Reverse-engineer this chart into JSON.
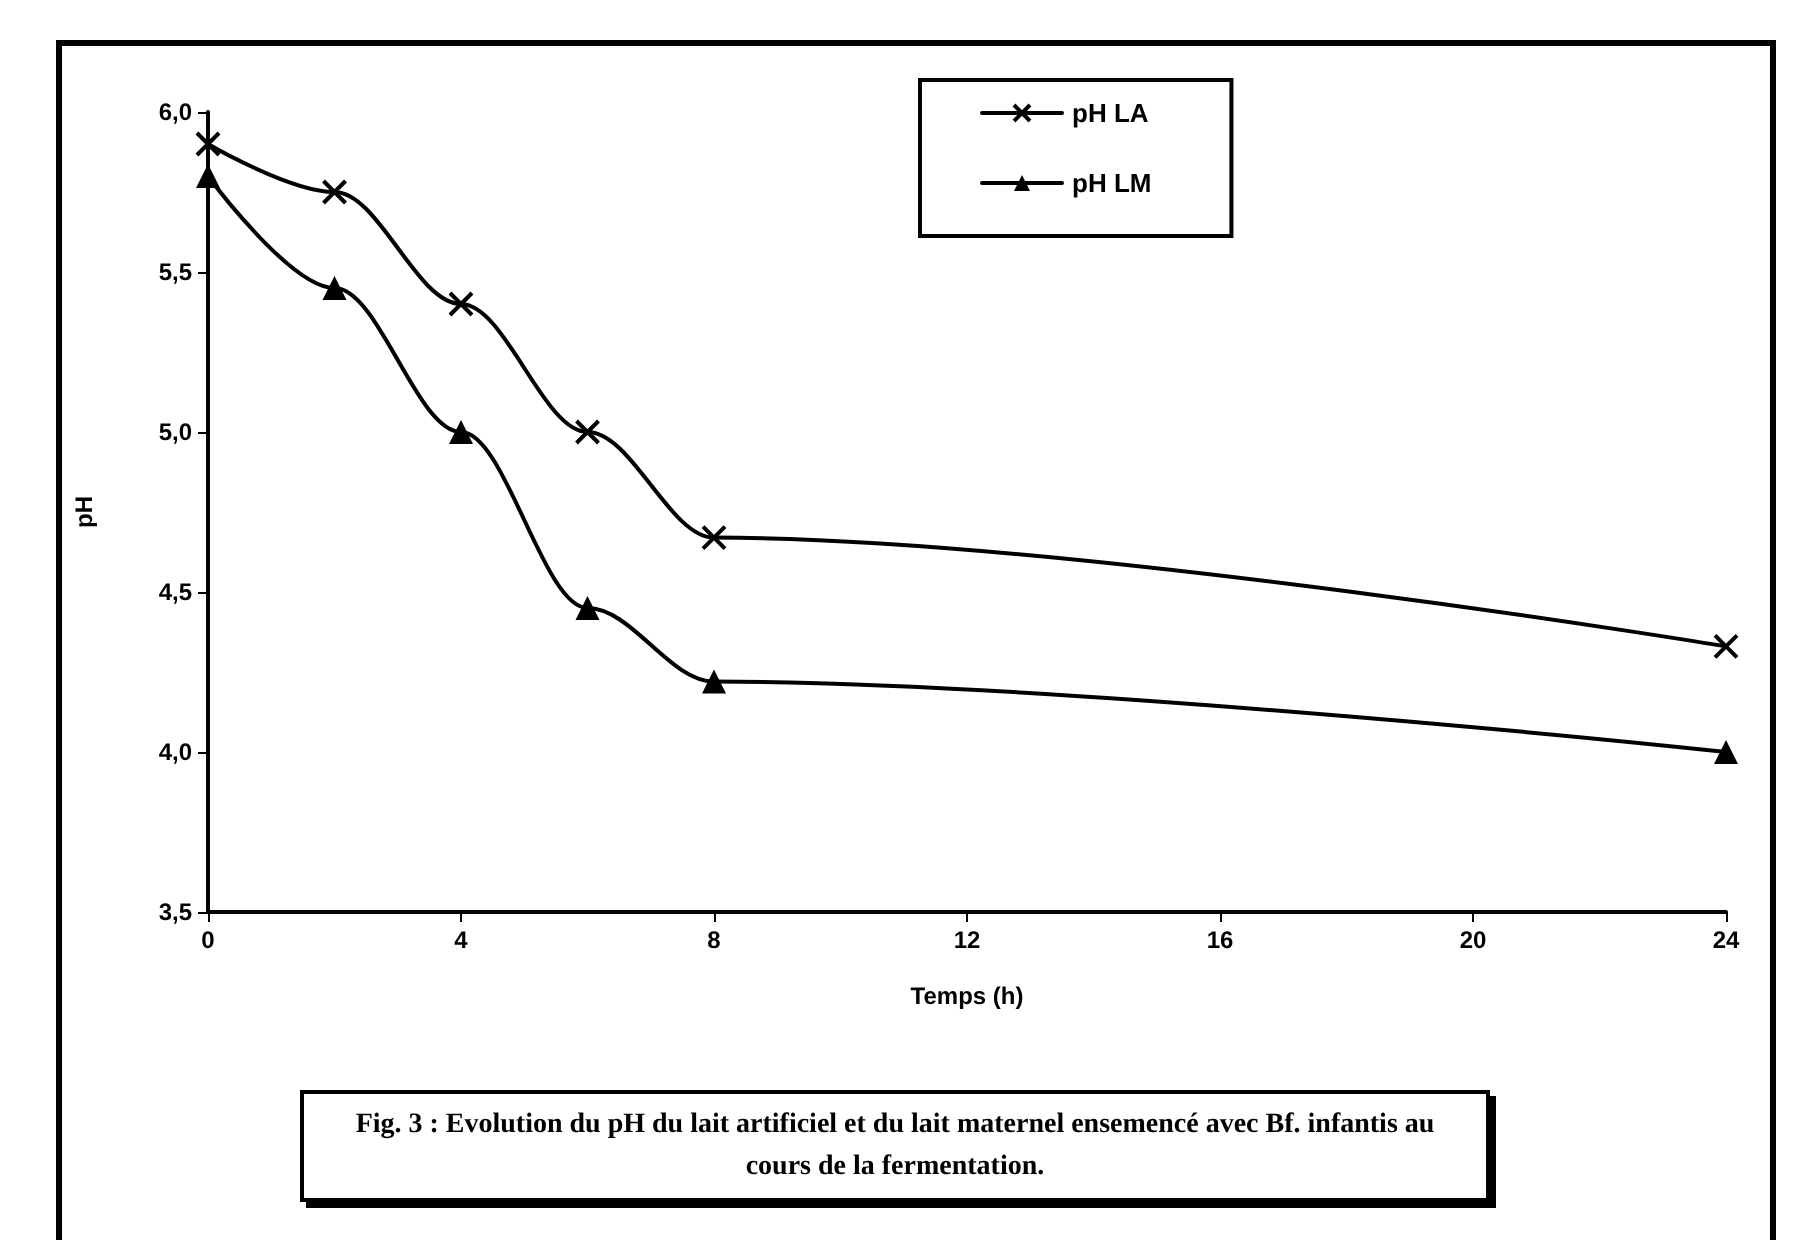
{
  "chart_data": {
    "type": "line",
    "xlabel": "Temps (h)",
    "ylabel": "pH",
    "x": [
      0,
      2,
      4,
      6,
      8,
      24
    ],
    "series": [
      {
        "name": "pH LA",
        "color": "#000000",
        "marker": "cross",
        "values": [
          5.9,
          5.75,
          5.4,
          5.0,
          4.67,
          4.33
        ]
      },
      {
        "name": "pH LM",
        "color": "#000000",
        "marker": "triangle",
        "values": [
          5.8,
          5.45,
          5.0,
          4.45,
          4.22,
          4.0
        ]
      }
    ],
    "xlim": [
      0,
      24
    ],
    "xticks": [
      0,
      4,
      8,
      12,
      16,
      20,
      24
    ],
    "ylim": [
      3.5,
      6.0
    ],
    "yticks": [
      {
        "value": 3.5,
        "label": "3,5"
      },
      {
        "value": 4.0,
        "label": "4,0"
      },
      {
        "value": 4.5,
        "label": "4,5"
      },
      {
        "value": 5.0,
        "label": "5,0"
      },
      {
        "value": 5.5,
        "label": "5,5"
      },
      {
        "value": 6.0,
        "label": "6,0"
      }
    ],
    "grid": false,
    "legend": "top",
    "line_style": "solid",
    "annotations": [
      "Fig. 3 : Evolution du pH du lait artificiel et du lait maternel ensemencé avec Bf. infantis au cours de la fermentation."
    ]
  }
}
